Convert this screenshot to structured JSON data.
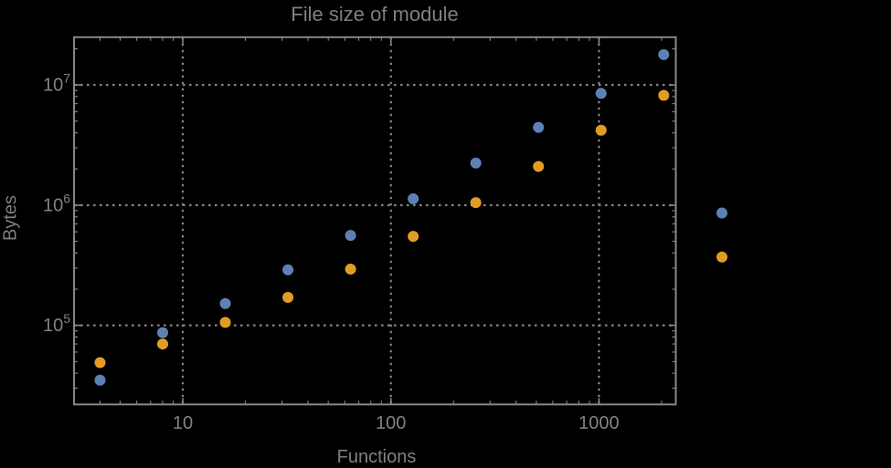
{
  "page": {
    "background": "#000000"
  },
  "chart_data": {
    "type": "scatter",
    "title": "File size of module",
    "xlabel": "Functions",
    "ylabel": "Bytes",
    "x_scale": "log",
    "y_scale": "log",
    "grid": "dotted",
    "legend": "none",
    "x_ticks": [
      10,
      100,
      1000
    ],
    "y_ticks": [
      100000,
      1000000,
      10000000
    ],
    "xlim": [
      3,
      2340
    ],
    "ylim": [
      22000,
      25000000
    ],
    "note": "Two-series log-log scatter; the pair at x~3900 is drawn beyond the right edge of the plot frame",
    "colors": {
      "series_blue": "#5e81b5",
      "series_orange": "#e19c24",
      "frame": "#878787",
      "grid": "#828282",
      "tick_label": "#818181",
      "text": "#7e7e7e",
      "background": "#000000"
    },
    "series": [
      {
        "name": "blue",
        "color": "#5e81b5",
        "points": [
          [
            4,
            35000
          ],
          [
            8,
            87000
          ],
          [
            16,
            152000
          ],
          [
            32,
            290000
          ],
          [
            64,
            560000
          ],
          [
            128,
            1130000
          ],
          [
            256,
            2240000
          ],
          [
            512,
            4440000
          ],
          [
            1024,
            8500000
          ],
          [
            2048,
            17900000
          ],
          [
            3900,
            860000
          ]
        ]
      },
      {
        "name": "orange",
        "color": "#e19c24",
        "points": [
          [
            4,
            49000
          ],
          [
            8,
            70000
          ],
          [
            16,
            106000
          ],
          [
            32,
            171000
          ],
          [
            64,
            294000
          ],
          [
            128,
            550000
          ],
          [
            256,
            1050000
          ],
          [
            512,
            2100000
          ],
          [
            1024,
            4200000
          ],
          [
            2048,
            8200000
          ],
          [
            3900,
            370000
          ]
        ]
      }
    ]
  }
}
